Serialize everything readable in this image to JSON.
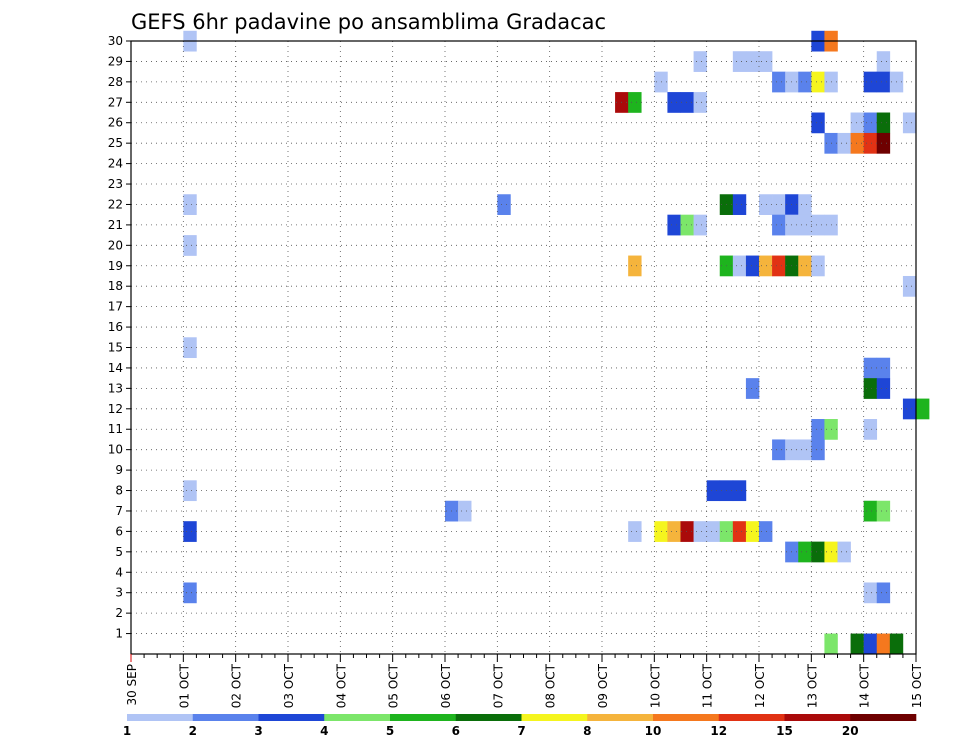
{
  "chart_data": {
    "type": "heatmap",
    "title": "GEFS 6hr padavine po ansamblima Gradacac",
    "xlabel": "",
    "ylabel": "",
    "x_ticks": [
      "30 SEP",
      "01 OCT",
      "02 OCT",
      "03 OCT",
      "04 OCT",
      "05 OCT",
      "06 OCT",
      "07 OCT",
      "08 OCT",
      "09 OCT",
      "10 OCT",
      "11 OCT",
      "12 OCT",
      "13 OCT",
      "14 OCT",
      "15 OCT"
    ],
    "x_step_hours": 6,
    "ylim": [
      0,
      30
    ],
    "y_ticks": [
      1,
      2,
      3,
      4,
      5,
      6,
      7,
      8,
      9,
      10,
      11,
      12,
      13,
      14,
      15,
      16,
      17,
      18,
      19,
      20,
      21,
      22,
      23,
      24,
      25,
      26,
      27,
      28,
      29,
      30
    ],
    "grid": true,
    "colorbar": {
      "position": "bottom",
      "labels": [
        "1",
        "2",
        "3",
        "4",
        "5",
        "6",
        "7",
        "8",
        "10",
        "12",
        "15",
        "20"
      ],
      "colors": [
        "#b0c4f5",
        "#5a82ec",
        "#1e46d6",
        "#7ce66a",
        "#1eb41e",
        "#0a6e0a",
        "#f5f51e",
        "#f5b43c",
        "#f5781e",
        "#e13214",
        "#aa0a0a",
        "#6e0000"
      ]
    },
    "cells": [
      {
        "m": 30,
        "t": 4,
        "c": 1
      },
      {
        "m": 30,
        "t": 52,
        "c": 3
      },
      {
        "m": 30,
        "t": 53,
        "c": 9
      },
      {
        "m": 29,
        "t": 43,
        "c": 1
      },
      {
        "m": 29,
        "t": 46,
        "c": 1
      },
      {
        "m": 29,
        "t": 47,
        "c": 1
      },
      {
        "m": 29,
        "t": 48,
        "c": 1
      },
      {
        "m": 29,
        "t": 57,
        "c": 1
      },
      {
        "m": 28,
        "t": 40,
        "c": 1
      },
      {
        "m": 28,
        "t": 49,
        "c": 2
      },
      {
        "m": 28,
        "t": 50,
        "c": 1
      },
      {
        "m": 28,
        "t": 51,
        "c": 2
      },
      {
        "m": 28,
        "t": 52,
        "c": 7
      },
      {
        "m": 28,
        "t": 53,
        "c": 1
      },
      {
        "m": 28,
        "t": 56,
        "c": 3
      },
      {
        "m": 28,
        "t": 57,
        "c": 3
      },
      {
        "m": 28,
        "t": 58,
        "c": 1
      },
      {
        "m": 27,
        "t": 37,
        "c": 11
      },
      {
        "m": 27,
        "t": 38,
        "c": 5
      },
      {
        "m": 27,
        "t": 41,
        "c": 3
      },
      {
        "m": 27,
        "t": 42,
        "c": 3
      },
      {
        "m": 27,
        "t": 43,
        "c": 1
      },
      {
        "m": 26,
        "t": 52,
        "c": 3
      },
      {
        "m": 26,
        "t": 55,
        "c": 1
      },
      {
        "m": 26,
        "t": 56,
        "c": 2
      },
      {
        "m": 26,
        "t": 57,
        "c": 6
      },
      {
        "m": 26,
        "t": 59,
        "c": 1
      },
      {
        "m": 25,
        "t": 53,
        "c": 2
      },
      {
        "m": 25,
        "t": 54,
        "c": 1
      },
      {
        "m": 25,
        "t": 55,
        "c": 9
      },
      {
        "m": 25,
        "t": 56,
        "c": 10
      },
      {
        "m": 25,
        "t": 57,
        "c": 12
      },
      {
        "m": 22,
        "t": 4,
        "c": 1
      },
      {
        "m": 22,
        "t": 28,
        "c": 2
      },
      {
        "m": 22,
        "t": 45,
        "c": 6
      },
      {
        "m": 22,
        "t": 46,
        "c": 3
      },
      {
        "m": 22,
        "t": 48,
        "c": 1
      },
      {
        "m": 22,
        "t": 49,
        "c": 1
      },
      {
        "m": 22,
        "t": 50,
        "c": 3
      },
      {
        "m": 22,
        "t": 51,
        "c": 1
      },
      {
        "m": 21,
        "t": 41,
        "c": 3
      },
      {
        "m": 21,
        "t": 42,
        "c": 4
      },
      {
        "m": 21,
        "t": 43,
        "c": 1
      },
      {
        "m": 21,
        "t": 49,
        "c": 2
      },
      {
        "m": 21,
        "t": 50,
        "c": 1
      },
      {
        "m": 21,
        "t": 51,
        "c": 1
      },
      {
        "m": 21,
        "t": 52,
        "c": 1
      },
      {
        "m": 21,
        "t": 53,
        "c": 1
      },
      {
        "m": 20,
        "t": 4,
        "c": 1
      },
      {
        "m": 19,
        "t": 38,
        "c": 8
      },
      {
        "m": 19,
        "t": 45,
        "c": 5
      },
      {
        "m": 19,
        "t": 46,
        "c": 1
      },
      {
        "m": 19,
        "t": 47,
        "c": 3
      },
      {
        "m": 19,
        "t": 48,
        "c": 8
      },
      {
        "m": 19,
        "t": 49,
        "c": 10
      },
      {
        "m": 19,
        "t": 50,
        "c": 6
      },
      {
        "m": 19,
        "t": 51,
        "c": 8
      },
      {
        "m": 19,
        "t": 52,
        "c": 1
      },
      {
        "m": 18,
        "t": 59,
        "c": 1
      },
      {
        "m": 15,
        "t": 4,
        "c": 1
      },
      {
        "m": 14,
        "t": 56,
        "c": 2
      },
      {
        "m": 14,
        "t": 57,
        "c": 2
      },
      {
        "m": 13,
        "t": 47,
        "c": 2
      },
      {
        "m": 13,
        "t": 56,
        "c": 6
      },
      {
        "m": 13,
        "t": 57,
        "c": 3
      },
      {
        "m": 12,
        "t": 59,
        "c": 3
      },
      {
        "m": 12,
        "t": 60,
        "c": 5
      },
      {
        "m": 11,
        "t": 52,
        "c": 2
      },
      {
        "m": 11,
        "t": 53,
        "c": 4
      },
      {
        "m": 11,
        "t": 56,
        "c": 1
      },
      {
        "m": 10,
        "t": 49,
        "c": 2
      },
      {
        "m": 10,
        "t": 50,
        "c": 1
      },
      {
        "m": 10,
        "t": 51,
        "c": 1
      },
      {
        "m": 10,
        "t": 52,
        "c": 2
      },
      {
        "m": 8,
        "t": 4,
        "c": 1
      },
      {
        "m": 8,
        "t": 44,
        "c": 3
      },
      {
        "m": 8,
        "t": 45,
        "c": 3
      },
      {
        "m": 8,
        "t": 46,
        "c": 3
      },
      {
        "m": 7,
        "t": 24,
        "c": 2
      },
      {
        "m": 7,
        "t": 25,
        "c": 1
      },
      {
        "m": 7,
        "t": 56,
        "c": 5
      },
      {
        "m": 7,
        "t": 57,
        "c": 4
      },
      {
        "m": 6,
        "t": 4,
        "c": 3
      },
      {
        "m": 6,
        "t": 38,
        "c": 1
      },
      {
        "m": 6,
        "t": 40,
        "c": 7
      },
      {
        "m": 6,
        "t": 41,
        "c": 8
      },
      {
        "m": 6,
        "t": 42,
        "c": 11
      },
      {
        "m": 6,
        "t": 43,
        "c": 1
      },
      {
        "m": 6,
        "t": 44,
        "c": 1
      },
      {
        "m": 6,
        "t": 45,
        "c": 4
      },
      {
        "m": 6,
        "t": 46,
        "c": 10
      },
      {
        "m": 6,
        "t": 47,
        "c": 7
      },
      {
        "m": 6,
        "t": 48,
        "c": 2
      },
      {
        "m": 5,
        "t": 50,
        "c": 2
      },
      {
        "m": 5,
        "t": 51,
        "c": 5
      },
      {
        "m": 5,
        "t": 52,
        "c": 6
      },
      {
        "m": 5,
        "t": 53,
        "c": 7
      },
      {
        "m": 5,
        "t": 54,
        "c": 1
      },
      {
        "m": 3,
        "t": 4,
        "c": 2
      },
      {
        "m": 3,
        "t": 56,
        "c": 1
      },
      {
        "m": 3,
        "t": 57,
        "c": 2
      },
      {
        "m": 0,
        "t": 53,
        "c": 4
      },
      {
        "m": 0,
        "t": 55,
        "c": 6
      },
      {
        "m": 0,
        "t": 56,
        "c": 3
      },
      {
        "m": 0,
        "t": 57,
        "c": 9
      },
      {
        "m": 0,
        "t": 58,
        "c": 6
      }
    ]
  }
}
